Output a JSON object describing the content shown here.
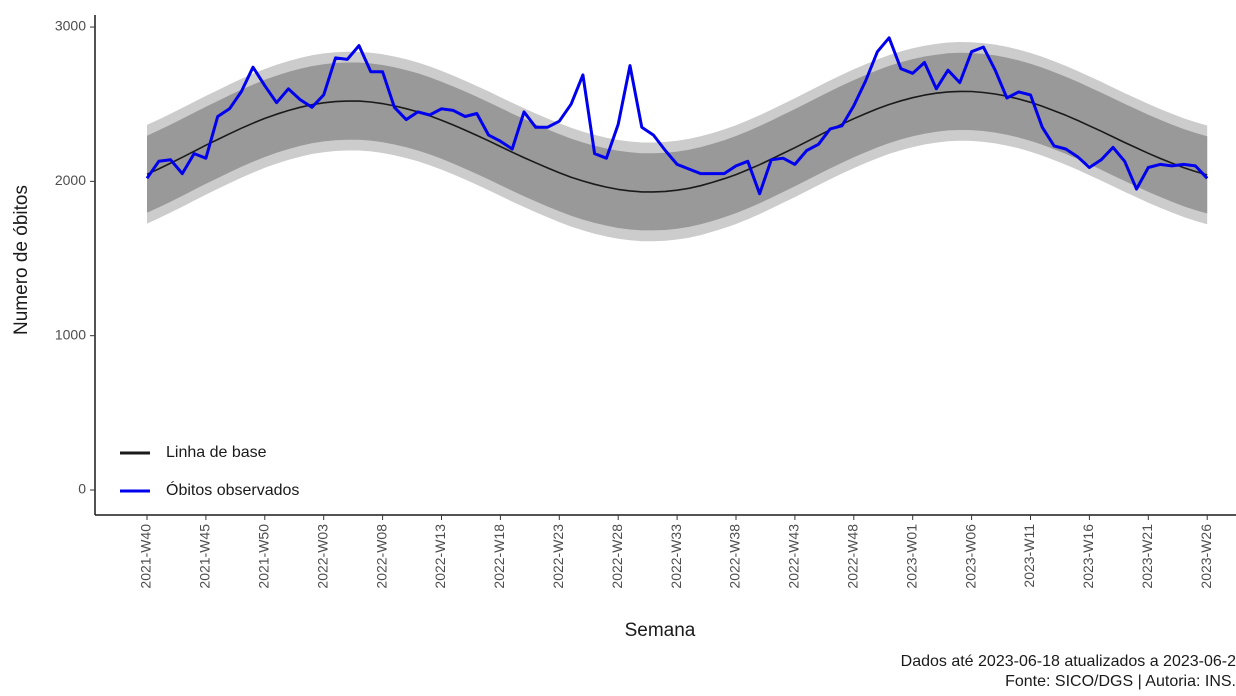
{
  "chart_data": {
    "type": "line",
    "xlabel": "Semana",
    "ylabel": "Numero de óbitos",
    "caption": [
      "Dados até 2023-06-18 atualizados a 2023-06-2",
      "Fonte: SICO/DGS | Autoria: INS."
    ],
    "legend": "bottom-left",
    "ylim": [
      -162,
      3078
    ],
    "yticks": [
      0,
      1000,
      2000,
      3000
    ],
    "categories": [
      "2021-W40",
      null,
      null,
      null,
      null,
      "2021-W45",
      null,
      null,
      null,
      null,
      "2021-W50",
      null,
      null,
      null,
      null,
      "2022-W03",
      null,
      null,
      null,
      null,
      "2022-W08",
      null,
      null,
      null,
      null,
      "2022-W13",
      null,
      null,
      null,
      null,
      "2022-W18",
      null,
      null,
      null,
      null,
      "2022-W23",
      null,
      null,
      null,
      null,
      "2022-W28",
      null,
      null,
      null,
      null,
      "2022-W33",
      null,
      null,
      null,
      null,
      "2022-W38",
      null,
      null,
      null,
      null,
      "2022-W43",
      null,
      null,
      null,
      null,
      "2022-W48",
      null,
      null,
      null,
      null,
      "2023-W01",
      null,
      null,
      null,
      null,
      "2023-W06",
      null,
      null,
      null,
      null,
      "2023-W11",
      null,
      null,
      null,
      null,
      "2023-W16",
      null,
      null,
      null,
      null,
      "2023-W21",
      null,
      null,
      null,
      null,
      "2023-W26"
    ],
    "bands": [
      {
        "color": "#cccccc",
        "lower": [
          1726,
          1761,
          1798,
          1836,
          1875,
          1914,
          1951,
          1988,
          2024,
          2057,
          2088,
          2115,
          2139,
          2160,
          2177,
          2189,
          2197,
          2200,
          2200,
          2194,
          2184,
          2169,
          2151,
          2130,
          2105,
          2076,
          2045,
          2012,
          1978,
          1943,
          1906,
          1869,
          1834,
          1800,
          1767,
          1736,
          1707,
          1682,
          1661,
          1643,
          1628,
          1618,
          1612,
          1612,
          1615,
          1623,
          1635,
          1652,
          1673,
          1697,
          1724,
          1755,
          1788,
          1824,
          1861,
          1898,
          1937,
          1976,
          2014,
          2051,
          2086,
          2119,
          2150,
          2178,
          2202,
          2222,
          2239,
          2251,
          2260,
          2263,
          2262,
          2256,
          2246,
          2232,
          2214,
          2192,
          2167,
          2138,
          2108,
          2075,
          2040,
          2005,
          1968,
          1932,
          1897,
          1862,
          1829,
          1798,
          1769,
          1744,
          1722
        ],
        "upper": [
          2366,
          2401,
          2438,
          2476,
          2515,
          2554,
          2591,
          2628,
          2664,
          2697,
          2728,
          2755,
          2779,
          2800,
          2817,
          2829,
          2837,
          2840,
          2840,
          2834,
          2824,
          2809,
          2791,
          2770,
          2745,
          2716,
          2685,
          2652,
          2618,
          2583,
          2546,
          2509,
          2474,
          2440,
          2407,
          2376,
          2347,
          2322,
          2301,
          2283,
          2268,
          2258,
          2252,
          2252,
          2255,
          2263,
          2275,
          2292,
          2313,
          2337,
          2364,
          2395,
          2428,
          2464,
          2501,
          2538,
          2577,
          2616,
          2654,
          2691,
          2726,
          2759,
          2790,
          2818,
          2842,
          2862,
          2879,
          2891,
          2900,
          2903,
          2902,
          2896,
          2886,
          2872,
          2854,
          2832,
          2807,
          2778,
          2748,
          2715,
          2680,
          2645,
          2608,
          2572,
          2537,
          2502,
          2469,
          2438,
          2409,
          2384,
          2362
        ]
      },
      {
        "color": "#999999",
        "lower": [
          1796,
          1831,
          1868,
          1906,
          1945,
          1984,
          2021,
          2058,
          2094,
          2127,
          2158,
          2185,
          2209,
          2230,
          2247,
          2259,
          2267,
          2270,
          2270,
          2264,
          2254,
          2239,
          2221,
          2200,
          2175,
          2146,
          2115,
          2082,
          2048,
          2013,
          1976,
          1939,
          1904,
          1870,
          1837,
          1806,
          1777,
          1752,
          1731,
          1713,
          1698,
          1688,
          1682,
          1682,
          1685,
          1693,
          1705,
          1722,
          1743,
          1767,
          1794,
          1825,
          1858,
          1894,
          1931,
          1968,
          2007,
          2046,
          2084,
          2121,
          2156,
          2189,
          2220,
          2248,
          2272,
          2292,
          2309,
          2321,
          2330,
          2333,
          2332,
          2326,
          2316,
          2302,
          2284,
          2262,
          2237,
          2208,
          2178,
          2145,
          2110,
          2075,
          2038,
          2002,
          1967,
          1932,
          1899,
          1868,
          1839,
          1814,
          1792
        ],
        "upper": [
          2296,
          2331,
          2368,
          2406,
          2445,
          2484,
          2521,
          2558,
          2594,
          2627,
          2658,
          2685,
          2709,
          2730,
          2747,
          2759,
          2767,
          2770,
          2770,
          2764,
          2754,
          2739,
          2721,
          2700,
          2675,
          2646,
          2615,
          2582,
          2548,
          2513,
          2476,
          2439,
          2404,
          2370,
          2337,
          2306,
          2277,
          2252,
          2231,
          2213,
          2198,
          2188,
          2182,
          2182,
          2185,
          2193,
          2205,
          2222,
          2243,
          2267,
          2294,
          2325,
          2358,
          2394,
          2431,
          2468,
          2507,
          2546,
          2584,
          2621,
          2656,
          2689,
          2720,
          2748,
          2772,
          2792,
          2809,
          2821,
          2830,
          2833,
          2832,
          2826,
          2816,
          2802,
          2784,
          2762,
          2737,
          2708,
          2678,
          2645,
          2610,
          2575,
          2538,
          2502,
          2467,
          2432,
          2399,
          2368,
          2339,
          2314,
          2292
        ]
      }
    ],
    "series": [
      {
        "name": "Linha de base",
        "color": "#1a1a1a",
        "width": 1.6,
        "values": [
          2046,
          2081,
          2118,
          2156,
          2195,
          2234,
          2271,
          2308,
          2344,
          2377,
          2408,
          2435,
          2459,
          2480,
          2497,
          2509,
          2517,
          2520,
          2520,
          2514,
          2504,
          2489,
          2471,
          2450,
          2425,
          2396,
          2365,
          2332,
          2298,
          2263,
          2226,
          2189,
          2154,
          2120,
          2087,
          2056,
          2027,
          2002,
          1981,
          1963,
          1948,
          1938,
          1932,
          1932,
          1935,
          1943,
          1955,
          1972,
          1993,
          2017,
          2044,
          2075,
          2108,
          2144,
          2181,
          2218,
          2257,
          2296,
          2334,
          2371,
          2406,
          2439,
          2470,
          2498,
          2522,
          2542,
          2559,
          2571,
          2580,
          2583,
          2582,
          2576,
          2566,
          2552,
          2534,
          2512,
          2487,
          2458,
          2428,
          2395,
          2360,
          2325,
          2288,
          2252,
          2217,
          2182,
          2149,
          2118,
          2089,
          2064,
          2042
        ]
      },
      {
        "name": "Óbitos observados",
        "color": "#0000ee",
        "width": 3,
        "values": [
          2020,
          2130,
          2140,
          2050,
          2180,
          2150,
          2420,
          2470,
          2580,
          2740,
          2620,
          2510,
          2600,
          2530,
          2480,
          2560,
          2800,
          2790,
          2880,
          2710,
          2710,
          2480,
          2400,
          2450,
          2430,
          2470,
          2460,
          2420,
          2440,
          2300,
          2260,
          2210,
          2450,
          2350,
          2350,
          2390,
          2500,
          2690,
          2180,
          2150,
          2370,
          2750,
          2350,
          2300,
          2200,
          2110,
          2080,
          2050,
          2050,
          2050,
          2100,
          2130,
          1920,
          2140,
          2150,
          2110,
          2200,
          2240,
          2340,
          2360,
          2490,
          2650,
          2840,
          2930,
          2730,
          2700,
          2770,
          2600,
          2720,
          2640,
          2840,
          2870,
          2720,
          2540,
          2580,
          2560,
          2350,
          2230,
          2210,
          2160,
          2090,
          2140,
          2220,
          2130,
          1950,
          2090,
          2110,
          2100,
          2110,
          2100,
          2020
        ]
      }
    ]
  }
}
